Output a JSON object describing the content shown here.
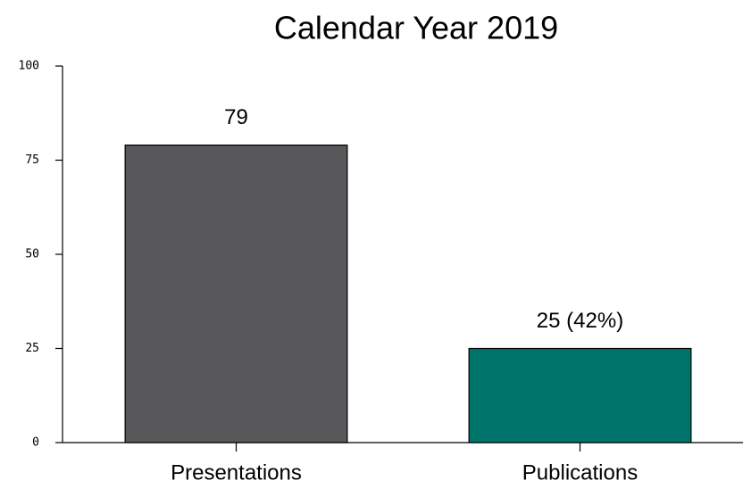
{
  "chart_data": {
    "type": "bar",
    "title": "Calendar Year 2019",
    "categories": [
      "Presentations",
      "Publications"
    ],
    "values": [
      79,
      25
    ],
    "value_labels": [
      "79",
      "25 (42%)"
    ],
    "colors": [
      "#58585b",
      "#00736a"
    ],
    "ylim": [
      0,
      100
    ],
    "yticks": [
      0,
      25,
      50,
      75,
      100
    ],
    "grid": false
  }
}
